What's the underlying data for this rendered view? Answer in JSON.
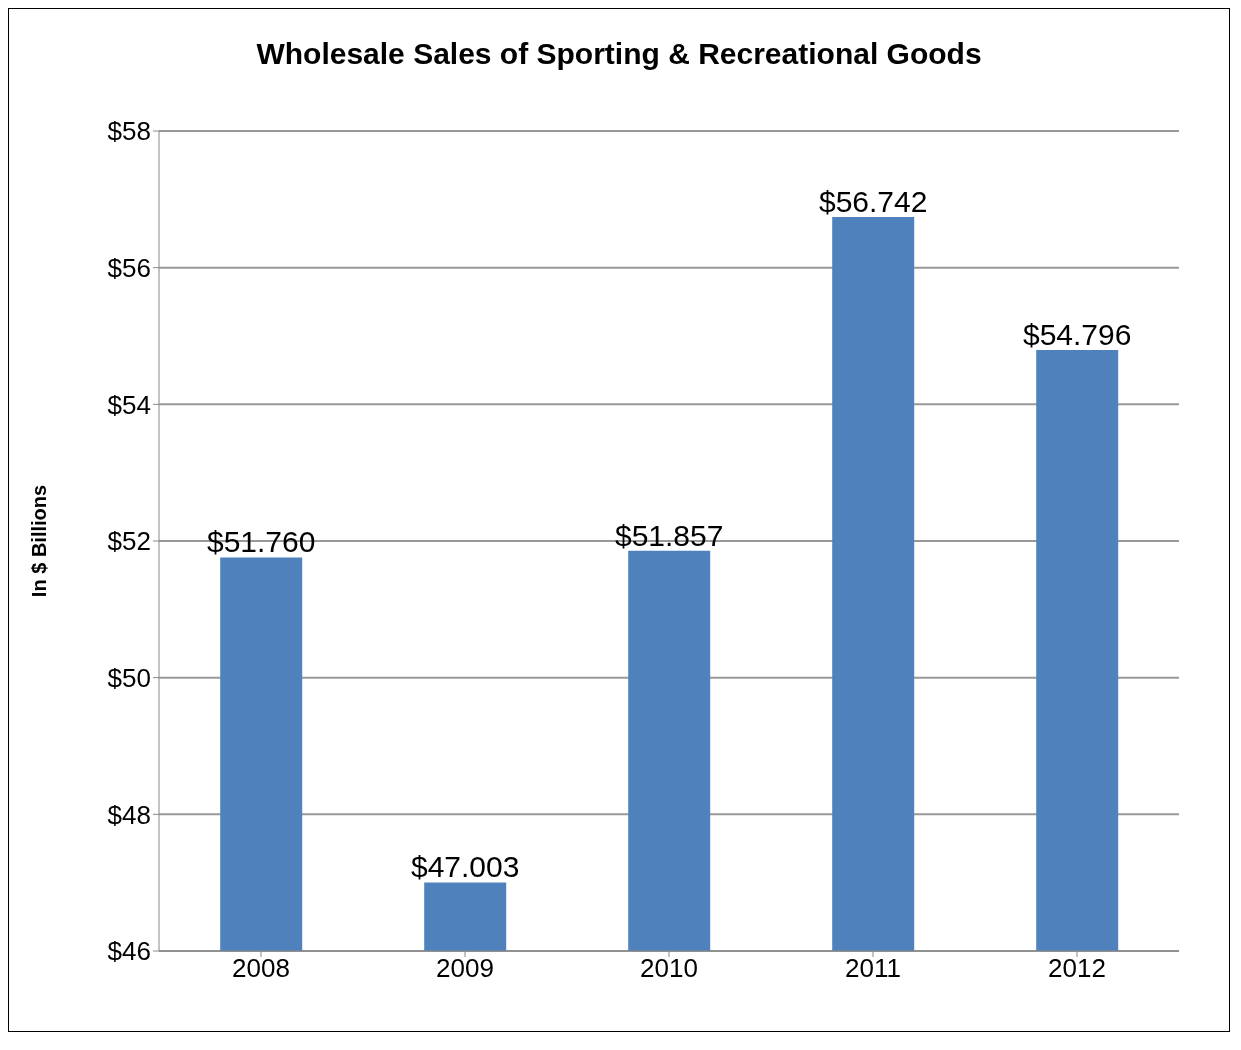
{
  "chart_data": {
    "type": "bar",
    "title": "Wholesale Sales of Sporting & Recreational Goods",
    "ylabel": "In $ Billions",
    "categories": [
      "2008",
      "2009",
      "2010",
      "2011",
      "2012"
    ],
    "values": [
      51.76,
      47.003,
      51.857,
      56.742,
      54.796
    ],
    "value_labels": [
      "$51.760",
      "$47.003",
      "$51.857",
      "$56.742",
      "$54.796"
    ],
    "color": "#4f81bd",
    "ylim": [
      46,
      58
    ],
    "yticks": [
      {
        "value": 46,
        "label": "$46"
      },
      {
        "value": 48,
        "label": "$48"
      },
      {
        "value": 50,
        "label": "$50"
      },
      {
        "value": 52,
        "label": "$52"
      },
      {
        "value": 54,
        "label": "$54"
      },
      {
        "value": 56,
        "label": "$56"
      },
      {
        "value": 58,
        "label": "$58"
      }
    ],
    "grid": "y"
  }
}
